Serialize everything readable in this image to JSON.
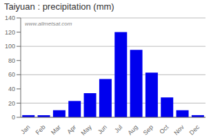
{
  "chart_data": {
    "type": "bar",
    "title": "Taiyuan : precipitation (mm)",
    "categories": [
      "Jan",
      "Feb",
      "Mar",
      "Apr",
      "May",
      "Jun",
      "Jul",
      "Aug",
      "Sep",
      "Oct",
      "Nov",
      "Dec"
    ],
    "values": [
      3,
      3,
      10,
      23,
      34,
      54,
      120,
      95,
      63,
      28,
      10,
      3
    ],
    "color": "#0000ee",
    "ylim": [
      0,
      140
    ],
    "yticks": [
      0,
      20,
      40,
      60,
      80,
      100,
      120,
      140
    ],
    "grid": true,
    "annotations": [
      "www.allmetsat.com"
    ]
  }
}
